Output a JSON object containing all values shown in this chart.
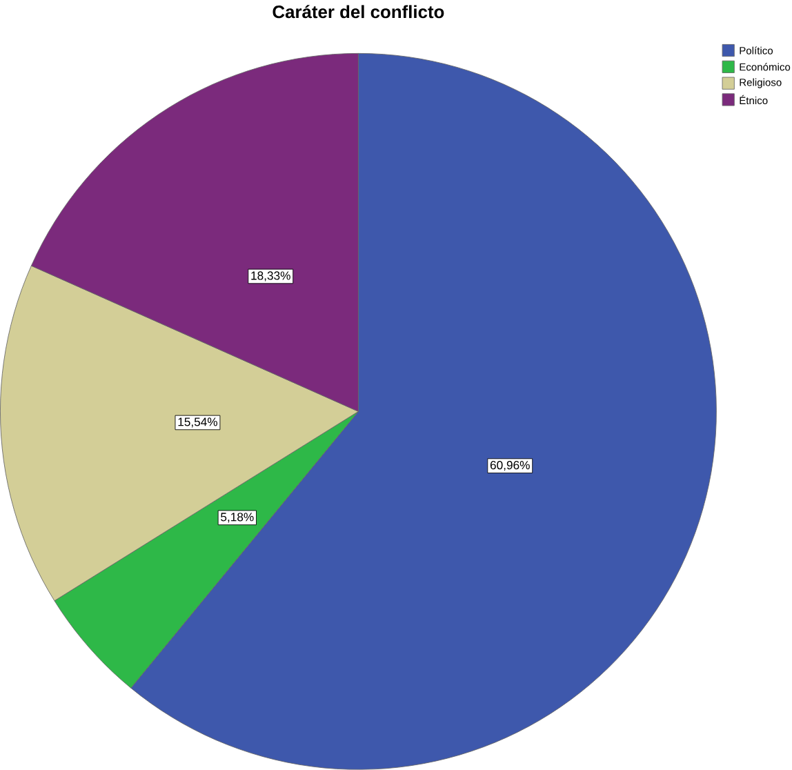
{
  "chart_data": {
    "type": "pie",
    "title": "Caráter del conflicto",
    "categories": [
      "Político",
      "Económico",
      "Religioso",
      "Étnico"
    ],
    "values": [
      60.96,
      5.18,
      15.54,
      18.33
    ],
    "value_labels": [
      "60,96%",
      "5,18%",
      "15,54%",
      "18,33%"
    ],
    "colors": [
      "#3e58ac",
      "#2eb848",
      "#d3ce97",
      "#7b2a7c"
    ],
    "legend": "top right"
  }
}
